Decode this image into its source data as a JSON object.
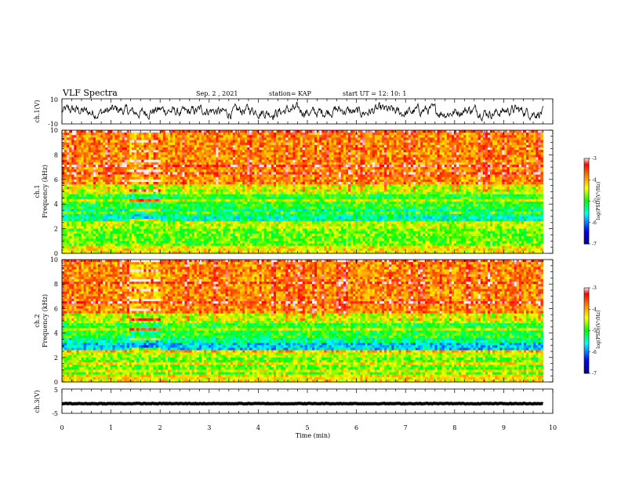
{
  "header": {
    "title": "VLF Spectra",
    "date": "Sep. 2 , 2021",
    "station": "station= KAP",
    "start": "start  UT =  12: 10: 1"
  },
  "chart_data": [
    {
      "type": "line",
      "panel": "ch1_waveform",
      "ylabel": "ch.1(V)",
      "ylim": [
        -10,
        10
      ],
      "yticks": [
        "10",
        "-10"
      ],
      "xlim": [
        0,
        10
      ],
      "x_end_of_data": 9.8,
      "baseline_approx_V": 0
    },
    {
      "type": "heatmap",
      "panel": "ch1_spectrogram",
      "ylabel_channel": "ch.1",
      "ylabel": "Frequency (kHz)",
      "ylim": [
        0,
        10
      ],
      "yticks": [
        "0",
        "2",
        "4",
        "6",
        "8",
        "10"
      ],
      "xlim": [
        0,
        10
      ],
      "colorbar": {
        "label": "log(PSD)(V²/Hz)",
        "range": [
          -7,
          -3
        ],
        "ticks": [
          "-3",
          "-4",
          "-5",
          "-6",
          "-7"
        ]
      }
    },
    {
      "type": "heatmap",
      "panel": "ch2_spectrogram",
      "ylabel_channel": "ch.2",
      "ylabel": "Frequency (kHz)",
      "ylim": [
        0,
        10
      ],
      "yticks": [
        "0",
        "2",
        "4",
        "6",
        "8",
        "10"
      ],
      "xlim": [
        0,
        10
      ],
      "colorbar": {
        "label": "log(PSD)(V²/Hz)",
        "range": [
          -7,
          -3
        ],
        "ticks": [
          "-3",
          "-4",
          "-5",
          "-6",
          "-7"
        ]
      }
    },
    {
      "type": "line",
      "panel": "ch3_waveform",
      "ylabel": "ch.3(V)",
      "ylim": [
        -5,
        5
      ],
      "yticks": [
        "5",
        "-5"
      ],
      "xlim": [
        0,
        10
      ],
      "baseline_approx_V": -1
    }
  ],
  "xaxis": {
    "label": "Time (min)",
    "ticks": [
      "0",
      "1",
      "2",
      "3",
      "4",
      "5",
      "6",
      "7",
      "8",
      "9",
      "10"
    ]
  },
  "colors": {
    "jet": [
      "#000080",
      "#0000ff",
      "#00ffff",
      "#00ff00",
      "#ffff00",
      "#ff8000",
      "#ff0000",
      "#ffffff"
    ]
  }
}
